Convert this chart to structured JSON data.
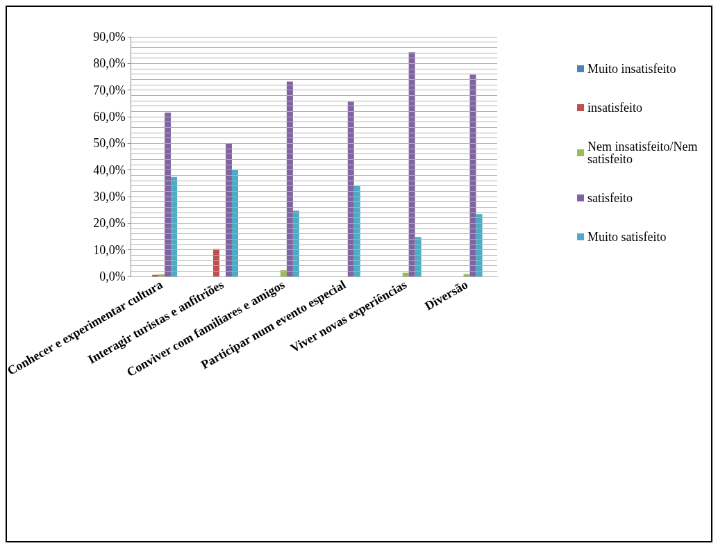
{
  "chart_data": {
    "type": "bar",
    "categories": [
      "Conhecer e experimentar cultura",
      "Interagir turistas e anfitriões",
      "Conviver com familiares e amigos",
      "Participar num evento especial",
      "Viver novas experiências",
      "Diversão"
    ],
    "series": [
      {
        "name": "Muito insatisfeito",
        "color": "#4f81bd",
        "values": [
          0,
          0,
          0,
          0,
          0,
          0
        ]
      },
      {
        "name": "insatisfeito",
        "color": "#c0504d",
        "values": [
          0.6,
          10.3,
          0,
          0,
          0,
          0
        ]
      },
      {
        "name": "Nem insatisfeito/Nem satisfeito",
        "color": "#9bbb59",
        "values": [
          0.8,
          0,
          2.3,
          0,
          1.4,
          0.9
        ]
      },
      {
        "name": "satisfeito",
        "color": "#8064a2",
        "values": [
          61.5,
          49.9,
          73.2,
          65.6,
          84.2,
          75.8
        ]
      },
      {
        "name": "Muito satisfeito",
        "color": "#4bacc6",
        "values": [
          37.4,
          39.9,
          24.7,
          34.2,
          14.8,
          23.4
        ]
      }
    ],
    "ylim": [
      0,
      90
    ],
    "yticks": [
      {
        "value": 0,
        "label": "0,0%"
      },
      {
        "value": 2,
        "label": null
      },
      {
        "value": 4,
        "label": null
      },
      {
        "value": 6,
        "label": null
      },
      {
        "value": 8,
        "label": null
      },
      {
        "value": 10,
        "label": "10,0%"
      },
      {
        "value": 12,
        "label": null
      },
      {
        "value": 14,
        "label": null
      },
      {
        "value": 16,
        "label": null
      },
      {
        "value": 18,
        "label": null
      },
      {
        "value": 20,
        "label": "20,0%"
      },
      {
        "value": 22,
        "label": null
      },
      {
        "value": 24,
        "label": null
      },
      {
        "value": 26,
        "label": null
      },
      {
        "value": 28,
        "label": null
      },
      {
        "value": 30,
        "label": "30,0%"
      },
      {
        "value": 32,
        "label": null
      },
      {
        "value": 34,
        "label": null
      },
      {
        "value": 36,
        "label": null
      },
      {
        "value": 38,
        "label": null
      },
      {
        "value": 40,
        "label": "40,0%"
      },
      {
        "value": 42,
        "label": null
      },
      {
        "value": 44,
        "label": null
      },
      {
        "value": 46,
        "label": null
      },
      {
        "value": 48,
        "label": null
      },
      {
        "value": 50,
        "label": "50,0%"
      },
      {
        "value": 52,
        "label": null
      },
      {
        "value": 54,
        "label": null
      },
      {
        "value": 56,
        "label": null
      },
      {
        "value": 58,
        "label": null
      },
      {
        "value": 60,
        "label": "60,0%"
      },
      {
        "value": 62,
        "label": null
      },
      {
        "value": 64,
        "label": null
      },
      {
        "value": 66,
        "label": null
      },
      {
        "value": 68,
        "label": null
      },
      {
        "value": 70,
        "label": "70,0%"
      },
      {
        "value": 72,
        "label": null
      },
      {
        "value": 74,
        "label": null
      },
      {
        "value": 76,
        "label": null
      },
      {
        "value": 78,
        "label": null
      },
      {
        "value": 80,
        "label": "80,0%"
      },
      {
        "value": 82,
        "label": null
      },
      {
        "value": 84,
        "label": null
      },
      {
        "value": 86,
        "label": null
      },
      {
        "value": 88,
        "label": null
      },
      {
        "value": 90,
        "label": "90,0%"
      }
    ],
    "grid": true,
    "legend": "right"
  }
}
